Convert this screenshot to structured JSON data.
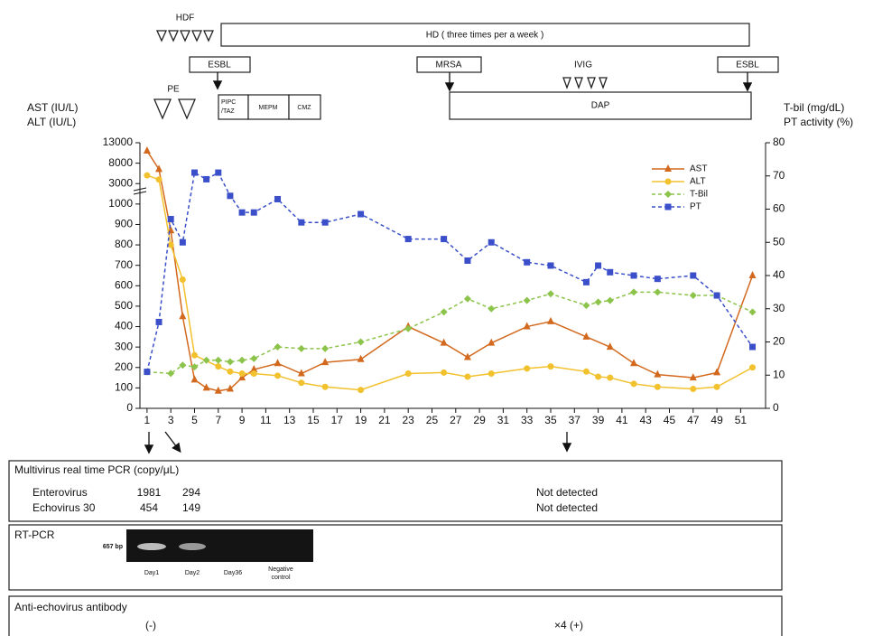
{
  "chart_data": {
    "type": "line",
    "y_label": [
      "AST (IU/L)",
      "ALT (IU/L)"
    ],
    "y2_label": [
      "T-bil (mg/dL)",
      "PT activity (%)"
    ],
    "xlim": [
      0.4,
      53.1
    ],
    "xticks": [
      1,
      3,
      5,
      7,
      9,
      11,
      13,
      15,
      17,
      19,
      21,
      23,
      25,
      27,
      29,
      31,
      33,
      35,
      37,
      39,
      41,
      43,
      45,
      47,
      49,
      51
    ],
    "ylim": [
      0,
      13000
    ],
    "yticks": [
      0,
      100,
      200,
      300,
      400,
      500,
      600,
      700,
      800,
      900,
      1000,
      3000,
      8000,
      13000
    ],
    "y2lim": [
      0,
      80
    ],
    "y2ticks": [
      0,
      10,
      20,
      30,
      40,
      50,
      60,
      70,
      80
    ],
    "legend": "upper right",
    "series": [
      {
        "name": "AST",
        "color": "#d2691e",
        "marker": "triangle",
        "linestyle": "solid",
        "x": [
          1,
          2,
          3,
          4,
          5,
          6,
          7,
          8,
          9,
          10,
          12,
          14,
          16,
          19,
          23,
          26,
          28,
          30,
          33,
          35,
          38,
          40,
          42,
          44,
          47,
          49,
          52
        ],
        "values": [
          11000,
          6500,
          870,
          450,
          140,
          100,
          85,
          95,
          150,
          190,
          220,
          170,
          225,
          240,
          400,
          320,
          250,
          320,
          400,
          425,
          350,
          300,
          220,
          165,
          150,
          175,
          650
        ]
      },
      {
        "name": "ALT",
        "color": "#f2c12e",
        "marker": "circle",
        "linestyle": "solid",
        "x": [
          1,
          2,
          3,
          4,
          5,
          7,
          8,
          9,
          10,
          12,
          14,
          16,
          19,
          23,
          26,
          28,
          30,
          33,
          35,
          38,
          39,
          40,
          42,
          44,
          47,
          49,
          52
        ],
        "values": [
          5000,
          4000,
          800,
          630,
          260,
          205,
          180,
          170,
          170,
          160,
          125,
          105,
          90,
          170,
          175,
          155,
          170,
          195,
          205,
          180,
          155,
          150,
          120,
          105,
          95,
          105,
          200
        ]
      },
      {
        "name": "T-Bil",
        "color": "#8cc34a",
        "marker": "diamond",
        "linestyle": "dashed",
        "axis": "y2",
        "x": [
          1,
          3,
          4,
          5,
          6,
          7,
          8,
          9,
          10,
          12,
          14,
          16,
          19,
          23,
          26,
          28,
          30,
          33,
          35,
          38,
          39,
          40,
          42,
          44,
          47,
          49,
          52
        ],
        "values": [
          11,
          10.5,
          13,
          12.5,
          14.5,
          14.5,
          14,
          14.5,
          15,
          18.5,
          18,
          18,
          20,
          24,
          29,
          33,
          30,
          32.5,
          34.5,
          31,
          32,
          32.5,
          35,
          35,
          34,
          34,
          29
        ]
      },
      {
        "name": "PT",
        "color": "#3a4fc9",
        "marker": "square",
        "linestyle": "dashed",
        "axis": "y2",
        "x": [
          1,
          2,
          3,
          4,
          5,
          6,
          7,
          8,
          9,
          10,
          12,
          14,
          16,
          19,
          23,
          26,
          28,
          30,
          33,
          35,
          38,
          39,
          40,
          42,
          44,
          47,
          49,
          52
        ],
        "values": [
          11,
          26,
          57,
          50,
          71,
          69,
          71,
          64,
          59,
          59,
          63,
          56,
          56,
          58.5,
          51,
          51,
          44.5,
          50,
          44,
          43,
          38,
          43,
          41,
          40,
          39,
          40,
          34,
          18.5
        ]
      }
    ]
  },
  "treatment": {
    "hdf": "HDF",
    "hd": "HD ( three times per a week )",
    "pe": "PE",
    "ivig": "IVIG",
    "infections": [
      "ESBL",
      "MRSA",
      "ESBL"
    ],
    "pipc_taz": [
      "PIPC",
      "/TAZ"
    ],
    "antibiotics": [
      "MEPM",
      "CMZ"
    ],
    "dap": "DAP"
  },
  "pcr": {
    "title": "Multivirus real time PCR (copy/μL)",
    "rows": [
      [
        "Enterovirus",
        "1981",
        "294",
        "Not detected"
      ],
      [
        "Echovirus 30",
        "454",
        "149",
        "Not detected"
      ]
    ]
  },
  "rt_pcr": {
    "title": "RT-PCR",
    "band": "657 bp",
    "lanes": [
      "Day1",
      "Day2",
      "Day36"
    ],
    "negative_control": [
      "Negative",
      "control"
    ]
  },
  "antibody": {
    "title": "Anti-echovirus antibody",
    "results": [
      "(-)",
      "×4 (+)"
    ]
  }
}
